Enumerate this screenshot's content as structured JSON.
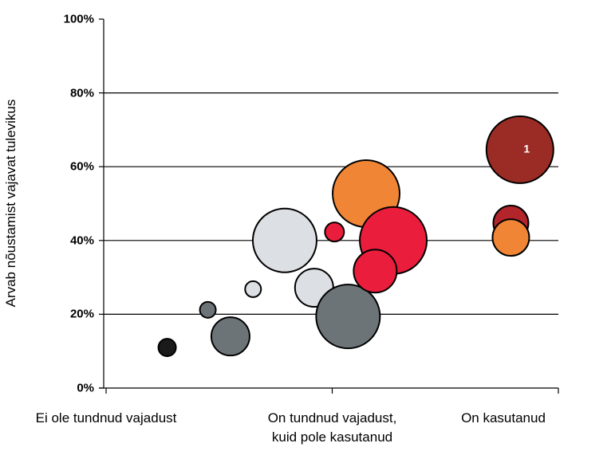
{
  "chart_data": {
    "type": "bubble",
    "ylabel": "Arvab nõustamist vajavat tulevikus",
    "xlim": [
      0,
      2
    ],
    "xticks": [
      {
        "value": 0,
        "label": "Ei ole tundnud vajadust"
      },
      {
        "value": 1,
        "label": "On tundnud vajadust,\nkuid pole kasutanud"
      },
      {
        "value": 2,
        "label": "On kasutanud"
      }
    ],
    "ylim": [
      0,
      100
    ],
    "yticks": [
      {
        "value": 0,
        "label": "0%"
      },
      {
        "value": 20,
        "label": "20%"
      },
      {
        "value": 40,
        "label": "40%"
      },
      {
        "value": 60,
        "label": "60%"
      },
      {
        "value": 80,
        "label": "80%"
      },
      {
        "value": 100,
        "label": "100%"
      }
    ],
    "grid": true,
    "x": [
      0.27,
      0.45,
      0.55,
      0.65,
      0.79,
      0.92,
      1.01,
      1.07,
      1.15,
      1.27,
      1.19,
      1.83,
      1.79,
      1.79
    ],
    "y": [
      11.0,
      21.2,
      14.0,
      26.8,
      40.0,
      27.2,
      42.3,
      19.4,
      52.7,
      40.0,
      31.7,
      64.6,
      44.7,
      40.8
    ],
    "sizes": [
      11,
      10,
      24,
      10,
      40,
      24,
      12,
      40,
      42,
      42,
      27,
      42,
      22,
      23
    ],
    "colors": [
      "#1a1a1a",
      "#6d7477",
      "#6d7477",
      "#dcdfe3",
      "#dcdfe3",
      "#dcdfe3",
      "#ea1d3c",
      "#6d7477",
      "#f08535",
      "#ea1d3c",
      "#ea1d3c",
      "#9b2b25",
      "#b1252b",
      "#f08535"
    ],
    "annotations": [
      {
        "text": "1",
        "x": 1.86,
        "y": 64.6
      }
    ]
  }
}
